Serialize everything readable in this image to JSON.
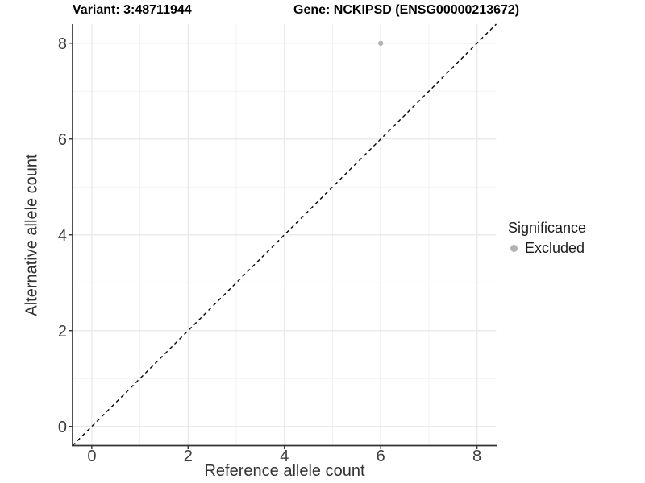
{
  "chart_data": {
    "type": "scatter",
    "titles": {
      "variant": "Variant: 3:48711944",
      "gene": "Gene: NCKIPSD (ENSG00000213672)"
    },
    "xlabel": "Reference allele count",
    "ylabel": "Alternative allele count",
    "xlim": [
      -0.4,
      8.4
    ],
    "ylim": [
      -0.4,
      8.4
    ],
    "x_ticks": [
      0,
      2,
      4,
      6,
      8
    ],
    "y_ticks": [
      0,
      2,
      4,
      6,
      8
    ],
    "x_minor_ticks": [
      1,
      3,
      5,
      7
    ],
    "y_minor_ticks": [
      1,
      3,
      5,
      7
    ],
    "grid": "major+minor",
    "series": [
      {
        "name": "Excluded",
        "marker": "circle",
        "color": "#b2b2b2",
        "points": [
          {
            "x": 6,
            "y": 8
          }
        ]
      }
    ],
    "reference_line": {
      "kind": "identity",
      "slope": 1,
      "intercept": 0,
      "style": "dashed",
      "color": "#000000"
    }
  },
  "legend": {
    "title": "Significance",
    "position": "right",
    "items": [
      {
        "label": "Excluded",
        "color": "#b2b2b2",
        "marker": "circle"
      }
    ]
  },
  "style": {
    "background": "#ffffff",
    "panel_background": "#ffffff",
    "major_grid": "#e7e7e7",
    "minor_grid": "#f2f2f2",
    "axis_line": "#333333",
    "axis_text": "#3d3d3d",
    "title_text": "#000000",
    "legend_text": "#1a1a1a",
    "point_color": "#b2b2b2",
    "reference_line_color": "#000000"
  }
}
